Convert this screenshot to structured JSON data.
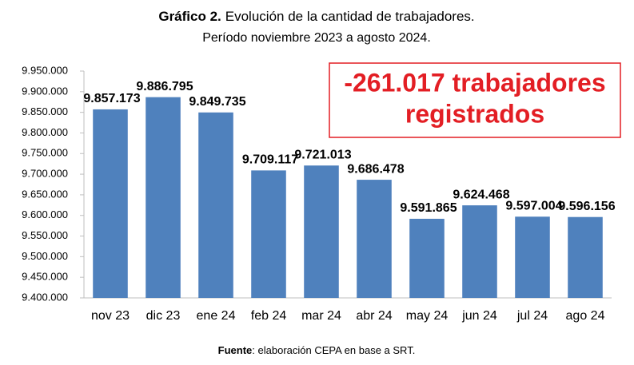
{
  "chart_data": {
    "type": "bar",
    "title_bold": "Gráfico 2.",
    "title": "Evolución de la cantidad de trabajadores.",
    "subtitle": "Período noviembre 2023 a agosto 2024.",
    "annotation": [
      "-261.017 trabajadores",
      "registrados"
    ],
    "source_bold": "Fuente",
    "source": ": elaboración CEPA en base a SRT.",
    "categories": [
      "nov 23",
      "dic 23",
      "ene 24",
      "feb 24",
      "mar 24",
      "abr 24",
      "may 24",
      "jun 24",
      "jul 24",
      "ago 24"
    ],
    "values": [
      9857173,
      9886795,
      9849735,
      9709117,
      9721013,
      9686478,
      9591865,
      9624468,
      9597004,
      9596156
    ],
    "value_labels": [
      "9.857.173",
      "9.886.795",
      "9.849.735",
      "9.709.117",
      "9.721.013",
      "9.686.478",
      "9.591.865",
      "9.624.468",
      "9.597.004",
      "9.596.156"
    ],
    "color": "#4f81bd",
    "ylim": [
      9400000,
      9950000
    ],
    "yticks": [
      {
        "value": 9400000,
        "label": "9.400.000"
      },
      {
        "value": 9450000,
        "label": "9.450.000"
      },
      {
        "value": 9500000,
        "label": "9.500.000"
      },
      {
        "value": 9550000,
        "label": "9.550.000"
      },
      {
        "value": 9600000,
        "label": "9.600.000"
      },
      {
        "value": 9650000,
        "label": "9.650.000"
      },
      {
        "value": 9700000,
        "label": "9.700.000"
      },
      {
        "value": 9750000,
        "label": "9.750.000"
      },
      {
        "value": 9800000,
        "label": "9.800.000"
      },
      {
        "value": 9850000,
        "label": "9.850.000"
      },
      {
        "value": 9900000,
        "label": "9.900.000"
      },
      {
        "value": 9950000,
        "label": "9.950.000"
      }
    ],
    "grid": false
  }
}
